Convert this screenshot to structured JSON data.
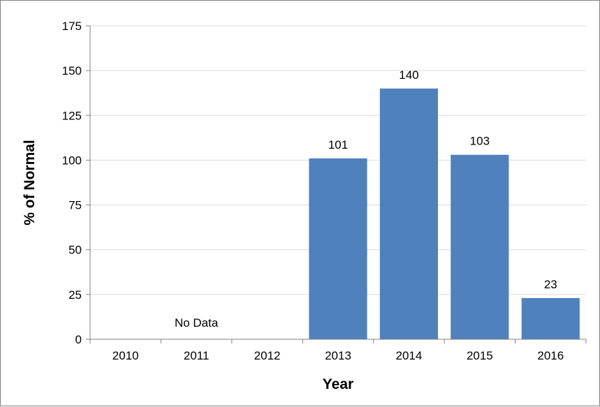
{
  "chart_data": {
    "type": "bar",
    "categories": [
      "2010",
      "2011",
      "2012",
      "2013",
      "2014",
      "2015",
      "2016"
    ],
    "values": [
      null,
      null,
      null,
      101,
      140,
      103,
      23
    ],
    "data_labels": [
      "",
      "",
      "",
      "101",
      "140",
      "103",
      "23"
    ],
    "title": "",
    "xlabel": "Year",
    "ylabel": "% of Normal",
    "ylim": [
      0,
      175
    ],
    "yticks": [
      0,
      25,
      50,
      75,
      100,
      125,
      150,
      175
    ],
    "ytick_labels": [
      "0",
      "25",
      "50",
      "75",
      "100",
      "125",
      "150",
      "175"
    ],
    "grid": true,
    "legend": "none",
    "annotations": [
      {
        "text": "No Data",
        "category": "2011"
      }
    ],
    "colors": {
      "bar": "#4f81bd",
      "grid": "#d9d9d9",
      "axis": "#808080"
    }
  }
}
